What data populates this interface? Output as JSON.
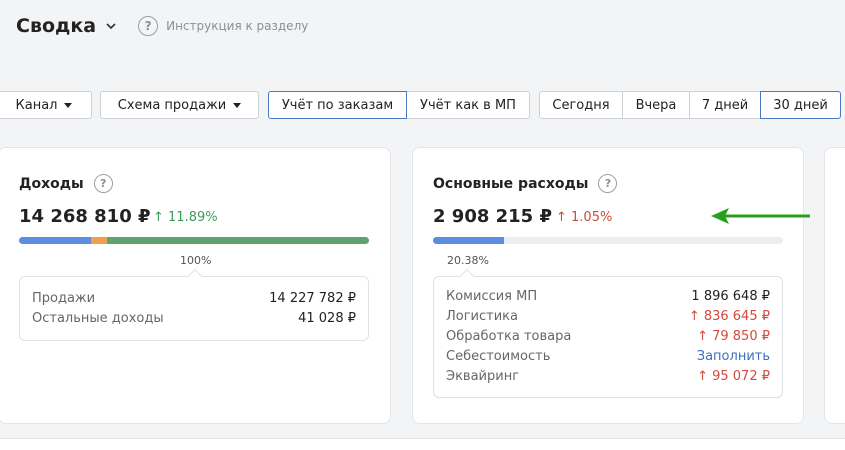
{
  "header": {
    "title": "Сводка",
    "help_text": "Инструкция к разделу"
  },
  "filters": {
    "channel": "Канал",
    "scheme": "Схема продажи",
    "accounting": [
      "Учёт по заказам",
      "Учёт как в МП"
    ],
    "periods": [
      "Сегодня",
      "Вчера",
      "7 дней",
      "30 дней"
    ]
  },
  "income": {
    "title": "Доходы",
    "amount": "14 268 810 ₽",
    "delta": "↑ 11.89%",
    "percent": "100%",
    "segments": [
      {
        "color": "#5b8de0",
        "share": 0.205
      },
      {
        "color": "#f0a04b",
        "share": 0.045
      },
      {
        "color": "#5fa370",
        "share": 0.75
      }
    ],
    "rows": [
      {
        "label": "Продажи",
        "value": "14 227 782 ₽"
      },
      {
        "label": "Остальные доходы",
        "value": "41 028 ₽"
      }
    ]
  },
  "expenses": {
    "title": "Основные расходы",
    "amount": "2 908 215 ₽",
    "delta": "↑ 1.05%",
    "percent": "20.38%",
    "fill_share": 0.2038,
    "rows": [
      {
        "label": "Комиссия МП",
        "value": "1 896 648 ₽"
      },
      {
        "label": "Логистика",
        "value": "↑ 836 645 ₽"
      },
      {
        "label": "Обработка товара",
        "value": "↑ 79 850 ₽"
      },
      {
        "label": "Себестоимость",
        "value": "Заполнить"
      },
      {
        "label": "Эквайринг",
        "value": "↑ 95 072 ₽"
      }
    ]
  },
  "colors": {
    "accent": "#4a78c2",
    "positive": "#3d9a58",
    "negative": "#d04b3a",
    "annotation_arrow": "#27a020"
  }
}
